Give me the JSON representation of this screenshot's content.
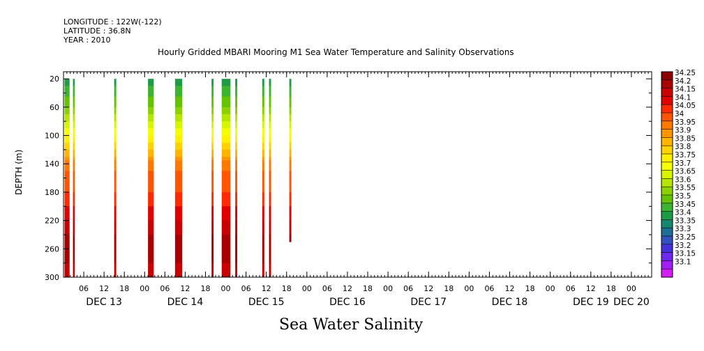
{
  "header": {
    "longitude": "LONGITUDE : 122W(-122)",
    "latitude": "LATITUDE : 36.8N",
    "year": "YEAR : 2010"
  },
  "title": "Hourly Gridded MBARI Mooring M1 Sea Water Temperature and Salinity Observations",
  "variable_name": "Sea Water Salinity",
  "chart_data": {
    "type": "heatmap",
    "title": "Hourly Gridded MBARI Mooring M1 Sea Water Temperature and Salinity Observations",
    "xlabel": "",
    "ylabel": "DEPTH (m)",
    "y_reversed": true,
    "ylim": [
      10,
      300
    ],
    "y_ticks": [
      20,
      60,
      100,
      140,
      180,
      220,
      260,
      300
    ],
    "x_hour_range": [
      0,
      174
    ],
    "x_ticks": [
      {
        "h": 6,
        "label": "06"
      },
      {
        "h": 12,
        "label": "12"
      },
      {
        "h": 18,
        "label": "18"
      },
      {
        "h": 24,
        "label": "00"
      },
      {
        "h": 30,
        "label": "06"
      },
      {
        "h": 36,
        "label": "12"
      },
      {
        "h": 42,
        "label": "18"
      },
      {
        "h": 48,
        "label": "00"
      },
      {
        "h": 54,
        "label": "06"
      },
      {
        "h": 60,
        "label": "12"
      },
      {
        "h": 66,
        "label": "18"
      },
      {
        "h": 72,
        "label": "00"
      },
      {
        "h": 78,
        "label": "06"
      },
      {
        "h": 84,
        "label": "12"
      },
      {
        "h": 90,
        "label": "18"
      },
      {
        "h": 96,
        "label": "00"
      },
      {
        "h": 102,
        "label": "06"
      },
      {
        "h": 108,
        "label": "12"
      },
      {
        "h": 114,
        "label": "18"
      },
      {
        "h": 120,
        "label": "00"
      },
      {
        "h": 126,
        "label": "06"
      },
      {
        "h": 132,
        "label": "12"
      },
      {
        "h": 138,
        "label": "18"
      },
      {
        "h": 144,
        "label": "00"
      },
      {
        "h": 150,
        "label": "06"
      },
      {
        "h": 156,
        "label": "12"
      },
      {
        "h": 162,
        "label": "18"
      },
      {
        "h": 168,
        "label": "00"
      }
    ],
    "date_labels": [
      {
        "h": 12,
        "label": "DEC 13"
      },
      {
        "h": 36,
        "label": "DEC 14"
      },
      {
        "h": 60,
        "label": "DEC 15"
      },
      {
        "h": 84,
        "label": "DEC 16"
      },
      {
        "h": 108,
        "label": "DEC 17"
      },
      {
        "h": 132,
        "label": "DEC 18"
      },
      {
        "h": 156,
        "label": "DEC 19"
      },
      {
        "h": 168,
        "label": "DEC 20"
      }
    ],
    "colorbar": {
      "levels": [
        "34.25",
        "34.2",
        "34.15",
        "34.1",
        "34.05",
        "34",
        "33.95",
        "33.9",
        "33.85",
        "33.8",
        "33.75",
        "33.7",
        "33.65",
        "33.6",
        "33.55",
        "33.5",
        "33.45",
        "33.4",
        "33.35",
        "33.3",
        "33.25",
        "33.2",
        "33.15",
        "33.1"
      ],
      "colors": [
        "#8b0000",
        "#a80000",
        "#c80000",
        "#e00000",
        "#ff2a00",
        "#ff5500",
        "#ff7800",
        "#ff9600",
        "#ffb400",
        "#ffd200",
        "#fff000",
        "#f5ff00",
        "#d7f500",
        "#b4e600",
        "#8cd200",
        "#64c300",
        "#3cb432",
        "#1e9b46",
        "#14876e",
        "#1e6e96",
        "#3250be",
        "#4632dc",
        "#6e28f0",
        "#a01ef5",
        "#d21ef5"
      ]
    },
    "depth_profile_levels": [
      {
        "depth": 20,
        "value": 33.42
      },
      {
        "depth": 40,
        "value": 33.48
      },
      {
        "depth": 60,
        "value": 33.55
      },
      {
        "depth": 80,
        "value": 33.65
      },
      {
        "depth": 100,
        "value": 33.75
      },
      {
        "depth": 120,
        "value": 33.85
      },
      {
        "depth": 140,
        "value": 33.97
      },
      {
        "depth": 160,
        "value": 34.02
      },
      {
        "depth": 180,
        "value": 34.05
      },
      {
        "depth": 200,
        "value": 34.1
      },
      {
        "depth": 220,
        "value": 34.15
      },
      {
        "depth": 240,
        "value": 34.2
      },
      {
        "depth": 260,
        "value": 34.25
      },
      {
        "depth": 280,
        "value": 34.2
      },
      {
        "depth": 300,
        "value": 34.15
      }
    ],
    "observation_columns": [
      {
        "start_h": 0.3,
        "end_h": 1.8,
        "bottom_depth": 300
      },
      {
        "start_h": 2.8,
        "end_h": 3.3,
        "bottom_depth": 300
      },
      {
        "start_h": 15.0,
        "end_h": 15.6,
        "bottom_depth": 300
      },
      {
        "start_h": 25.0,
        "end_h": 26.7,
        "bottom_depth": 300
      },
      {
        "start_h": 33.0,
        "end_h": 35.1,
        "bottom_depth": 300
      },
      {
        "start_h": 43.8,
        "end_h": 44.4,
        "bottom_depth": 300
      },
      {
        "start_h": 46.8,
        "end_h": 49.4,
        "bottom_depth": 300
      },
      {
        "start_h": 50.8,
        "end_h": 51.4,
        "bottom_depth": 300
      },
      {
        "start_h": 58.8,
        "end_h": 59.4,
        "bottom_depth": 300
      },
      {
        "start_h": 60.8,
        "end_h": 61.4,
        "bottom_depth": 300
      },
      {
        "start_h": 66.8,
        "end_h": 67.4,
        "bottom_depth": 250
      }
    ]
  }
}
